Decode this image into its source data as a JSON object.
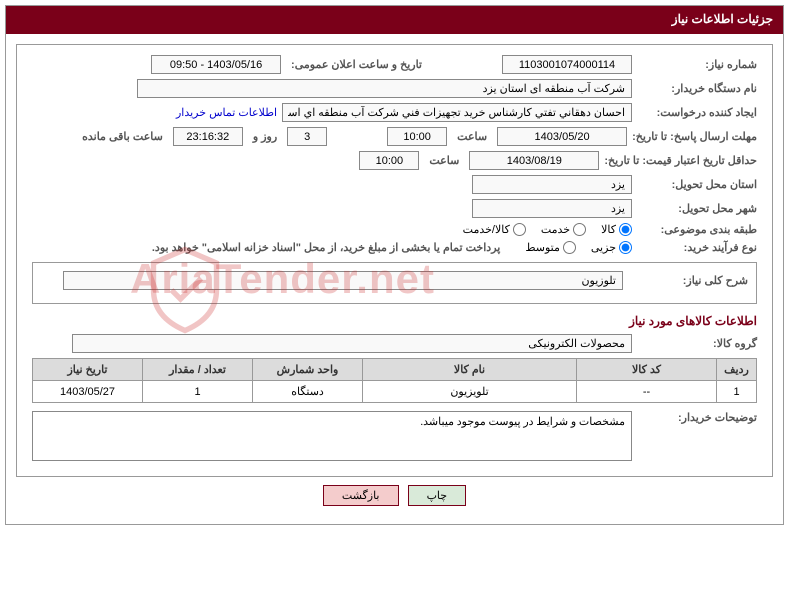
{
  "header": {
    "title": "جزئیات اطلاعات نیاز"
  },
  "form": {
    "need_number_label": "شماره نیاز:",
    "need_number_value": "1103001074000114",
    "announce_datetime_label": "تاریخ و ساعت اعلان عمومی:",
    "announce_datetime_value": "1403/05/16 - 09:50",
    "buyer_org_label": "نام دستگاه خریدار:",
    "buyer_org_value": "شرکت آب منطقه ای استان یزد",
    "requester_label": "ایجاد کننده درخواست:",
    "requester_value": "احسان دهقاني تفتي كارشناس خريد تجهيزات فني شركت آب منطقه اي استان",
    "buyer_contact_link": "اطلاعات تماس خریدار",
    "response_deadline_label": "مهلت ارسال پاسخ: تا تاریخ:",
    "response_deadline_date": "1403/05/20",
    "time_label": "ساعت",
    "response_deadline_time": "10:00",
    "days_label": "روز و",
    "days_remaining": "3",
    "hours_remaining": "23:16:32",
    "remaining_suffix": "ساعت باقی مانده",
    "price_validity_label": "حداقل تاریخ اعتبار قیمت: تا تاریخ:",
    "price_validity_date": "1403/08/19",
    "price_validity_time": "10:00",
    "delivery_province_label": "استان محل تحویل:",
    "delivery_province_value": "یزد",
    "delivery_city_label": "شهر محل تحویل:",
    "delivery_city_value": "یزد",
    "classification_label": "طبقه بندی موضوعی:",
    "radio_kala": "کالا",
    "radio_khadmat": "خدمت",
    "radio_kala_khadmat": "کالا/خدمت",
    "purchase_type_label": "نوع فرآیند خرید:",
    "radio_partial": "جزیی",
    "radio_medium": "متوسط",
    "purchase_note": "پرداخت تمام یا بخشی از مبلغ خرید، از محل \"اسناد خزانه اسلامی\" خواهد بود.",
    "general_desc_label": "شرح کلی نیاز:",
    "general_desc_value": "تلوزیون",
    "goods_section_title": "اطلاعات کالاهای مورد نیاز",
    "goods_group_label": "گروه کالا:",
    "goods_group_value": "محصولات الکترونیکی",
    "buyer_notes_label": "توضیحات خریدار:",
    "buyer_notes_value": "مشخصات و شرایط در پیوست موجود میباشد."
  },
  "table": {
    "columns": [
      "ردیف",
      "کد کالا",
      "نام کالا",
      "واحد شمارش",
      "تعداد / مقدار",
      "تاریخ نیاز"
    ],
    "rows": [
      [
        "1",
        "--",
        "تلویزیون",
        "دستگاه",
        "1",
        "1403/05/27"
      ]
    ],
    "col_widths": [
      "40px",
      "140px",
      "auto",
      "110px",
      "110px",
      "110px"
    ]
  },
  "footer": {
    "print_label": "چاپ",
    "back_label": "بازگشت"
  },
  "watermark": {
    "text": "AriaTender.net"
  },
  "colors": {
    "header_bg": "#7a0019",
    "border": "#999999",
    "table_header_bg": "#dcdcdc"
  }
}
